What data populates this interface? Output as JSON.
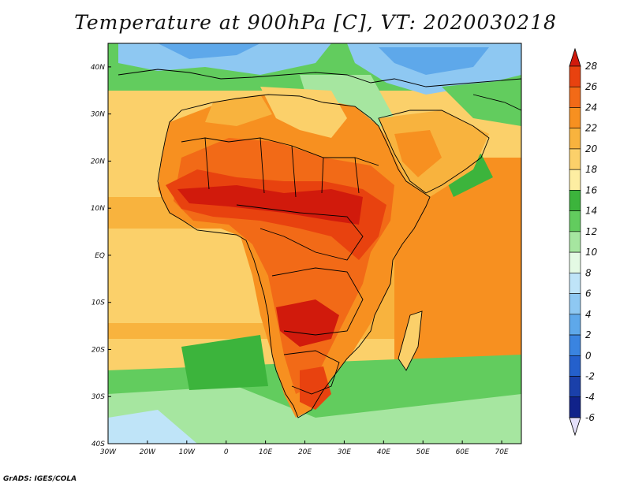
{
  "title": "Temperature at 900hPa [C], VT: 2020030218",
  "credit": "GrADS: IGES/COLA",
  "map": {
    "longitude_ticks": [
      "30W",
      "20W",
      "10W",
      "0",
      "10E",
      "20E",
      "30E",
      "40E",
      "50E",
      "60E",
      "70E"
    ],
    "latitude_ticks": [
      "40N",
      "30N",
      "20N",
      "10N",
      "EQ",
      "10S",
      "20S",
      "30S",
      "40S"
    ],
    "lon_range": [
      -30,
      75
    ],
    "lat_range": [
      -40,
      45
    ]
  },
  "colorbar": {
    "labels": [
      "28",
      "26",
      "24",
      "22",
      "20",
      "18",
      "16",
      "14",
      "12",
      "10",
      "8",
      "6",
      "4",
      "2",
      "0",
      "-2",
      "-4",
      "-6"
    ],
    "colors": [
      "#d11a0c",
      "#e8420f",
      "#f26a17",
      "#f79020",
      "#f8b33e",
      "#fbd06a",
      "#fdeea2",
      "#3cb43c",
      "#62cc5e",
      "#a6e6a0",
      "#e4fae4",
      "#bfe4f8",
      "#8ec8f2",
      "#5ea8ea",
      "#3a84e0",
      "#2460cc",
      "#1a40aa",
      "#10228a"
    ]
  }
}
